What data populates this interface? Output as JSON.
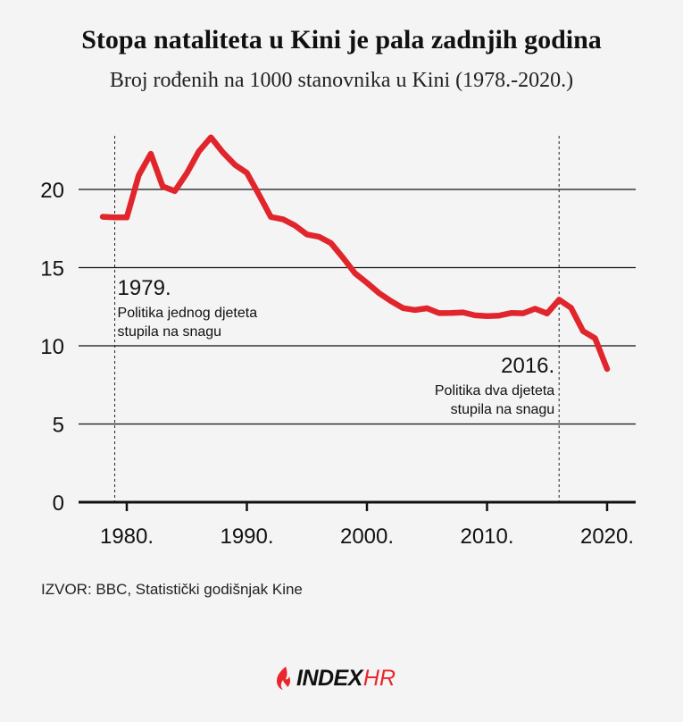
{
  "header": {
    "title": "Stopa nataliteta u Kini je pala zadnjih godina",
    "subtitle": "Broj rođenih na 1000 stanovnika u Kini (1978.-2020.)"
  },
  "footer": {
    "source": "IZVOR: BBC, Statistički godišnjak Kine",
    "logo_index": "INDEX",
    "logo_hr": "HR"
  },
  "colors": {
    "line": "#e0262c",
    "background": "#f4f4f4",
    "logo_accent": "#e8262b"
  },
  "chart_data": {
    "type": "line",
    "title": "Stopa nataliteta u Kini je pala zadnjih godina",
    "subtitle": "Broj rođenih na 1000 stanovnika u Kini (1978.-2020.)",
    "xlabel": "",
    "ylabel": "",
    "xlim": [
      1976,
      2022
    ],
    "ylim": [
      0,
      25
    ],
    "y_ticks": [
      0,
      5,
      10,
      15,
      20
    ],
    "y_tick_labels": [
      "0",
      "5",
      "10",
      "15",
      "20"
    ],
    "x_ticks": [
      1980,
      1990,
      2000,
      2010,
      2020
    ],
    "x_tick_labels": [
      "1980.",
      "1990.",
      "2000.",
      "2010.",
      "2020."
    ],
    "grid": "horizontal",
    "series": [
      {
        "name": "",
        "x": [
          1978,
          1979,
          1980,
          1981,
          1982,
          1983,
          1984,
          1985,
          1986,
          1987,
          1988,
          1989,
          1990,
          1991,
          1992,
          1993,
          1994,
          1995,
          1996,
          1997,
          1998,
          1999,
          2000,
          2001,
          2002,
          2003,
          2004,
          2005,
          2006,
          2007,
          2008,
          2009,
          2010,
          2011,
          2012,
          2013,
          2014,
          2015,
          2016,
          2017,
          2018,
          2019,
          2020
        ],
        "y": [
          18.25,
          18.21,
          18.21,
          20.91,
          22.28,
          20.19,
          19.9,
          21.04,
          22.43,
          23.33,
          22.37,
          21.58,
          21.06,
          19.68,
          18.24,
          18.09,
          17.7,
          17.12,
          16.98,
          16.57,
          15.64,
          14.64,
          14.03,
          13.38,
          12.86,
          12.41,
          12.29,
          12.4,
          12.09,
          12.1,
          12.14,
          11.95,
          11.9,
          11.93,
          12.1,
          12.08,
          12.37,
          12.07,
          12.95,
          12.43,
          10.94,
          10.48,
          8.52
        ]
      }
    ],
    "annotations": [
      {
        "x": 1979,
        "year_label": "1979.",
        "line1": "Politika jednog djeteta",
        "line2": "stupila na snagu",
        "align": "left"
      },
      {
        "x": 2016,
        "year_label": "2016.",
        "line1": "Politika dva djeteta",
        "line2": "stupila na snagu",
        "align": "right"
      }
    ]
  }
}
